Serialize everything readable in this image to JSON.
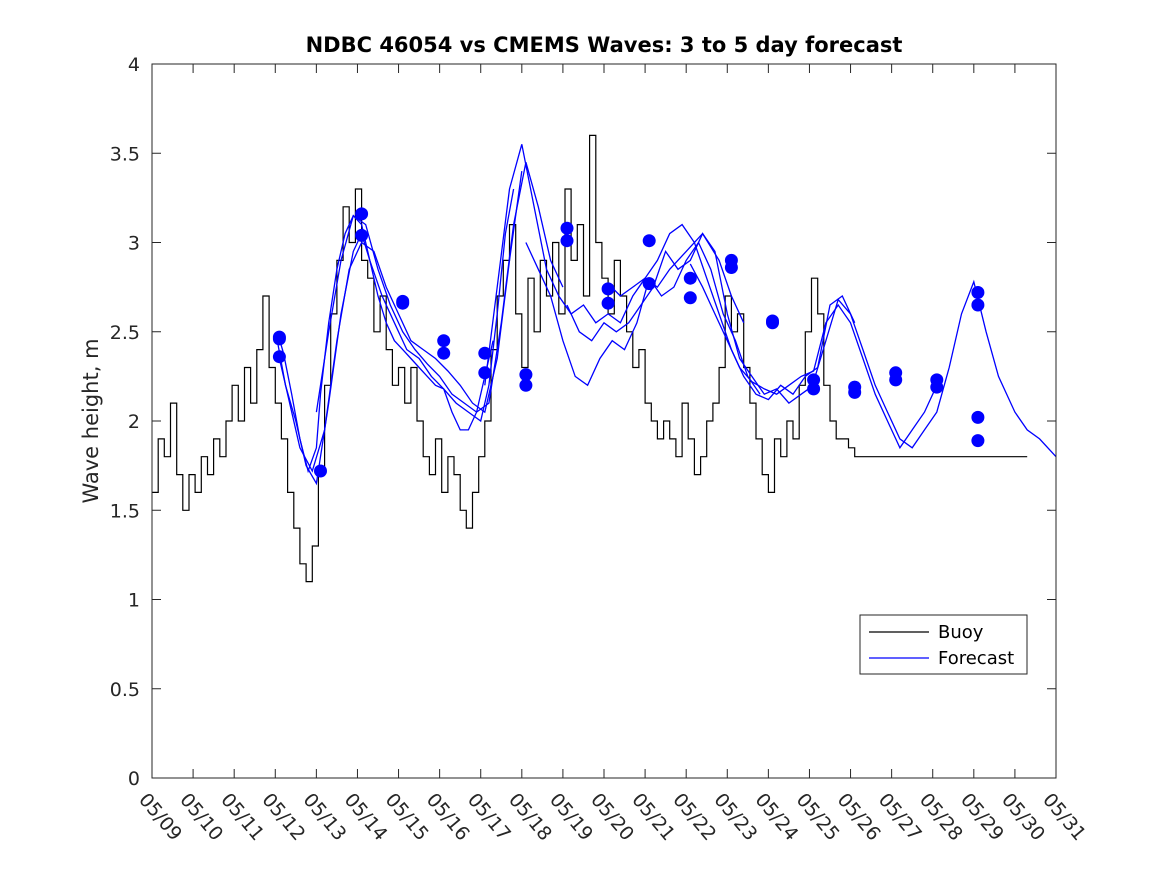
{
  "chart_data": {
    "type": "line",
    "title": "NDBC 46054 vs CMEMS Waves: 3 to 5 day forecast",
    "xlabel": "",
    "ylabel": "Wave height, m",
    "xlim": [
      "05/09",
      "05/31"
    ],
    "ylim": [
      0,
      4
    ],
    "x_ticks": [
      "05/09",
      "05/10",
      "05/11",
      "05/12",
      "05/13",
      "05/14",
      "05/15",
      "05/16",
      "05/17",
      "05/18",
      "05/19",
      "05/20",
      "05/21",
      "05/22",
      "05/23",
      "05/24",
      "05/25",
      "05/26",
      "05/27",
      "05/28",
      "05/29",
      "05/30",
      "05/31"
    ],
    "y_ticks": [
      "0",
      "0.5",
      "1",
      "1.5",
      "2",
      "2.5",
      "3",
      "3.5",
      "4"
    ],
    "grid": false,
    "legend_position": "lower-right",
    "colors": {
      "buoy": "#000000",
      "forecast": "#0000ff"
    },
    "series": [
      {
        "name": "Buoy",
        "x": [
          0,
          0.15,
          0.3,
          0.45,
          0.6,
          0.75,
          0.9,
          1.05,
          1.2,
          1.35,
          1.5,
          1.65,
          1.8,
          1.95,
          2.1,
          2.25,
          2.4,
          2.55,
          2.7,
          2.85,
          3,
          3.15,
          3.3,
          3.45,
          3.6,
          3.75,
          3.9,
          4.05,
          4.2,
          4.35,
          4.5,
          4.65,
          4.8,
          4.95,
          5.1,
          5.25,
          5.4,
          5.55,
          5.7,
          5.85,
          6,
          6.15,
          6.3,
          6.45,
          6.6,
          6.75,
          6.9,
          7.05,
          7.2,
          7.35,
          7.5,
          7.65,
          7.8,
          7.95,
          8.1,
          8.25,
          8.4,
          8.55,
          8.7,
          8.85,
          9,
          9.15,
          9.3,
          9.45,
          9.6,
          9.75,
          9.9,
          10.05,
          10.2,
          10.35,
          10.5,
          10.65,
          10.8,
          10.95,
          11.1,
          11.25,
          11.4,
          11.55,
          11.7,
          11.85,
          12,
          12.15,
          12.3,
          12.45,
          12.6,
          12.75,
          12.9,
          13.05,
          13.2,
          13.35,
          13.5,
          13.65,
          13.8,
          13.95,
          14.1,
          14.25,
          14.4,
          14.55,
          14.7,
          14.85,
          15,
          15.15,
          15.3,
          15.45,
          15.6,
          15.75,
          15.9,
          16.05,
          16.2,
          16.35,
          16.5,
          16.65,
          16.8,
          16.95,
          17.1,
          17.25,
          17.4,
          17.55,
          17.7,
          17.85,
          18,
          18.15,
          18.3,
          18.45,
          18.6,
          18.75,
          18.9,
          19.05,
          19.2,
          19.35,
          19.5,
          19.65,
          19.8,
          19.95,
          20.1,
          20.25,
          20.4,
          20.55,
          20.7,
          20.85,
          21,
          21.15,
          21.3
        ],
        "values": [
          1.6,
          1.9,
          1.8,
          2.1,
          1.7,
          1.5,
          1.7,
          1.6,
          1.8,
          1.7,
          1.9,
          1.8,
          2.0,
          2.2,
          2.0,
          2.3,
          2.1,
          2.4,
          2.7,
          2.3,
          2.1,
          1.9,
          1.6,
          1.4,
          1.2,
          1.1,
          1.3,
          1.7,
          2.2,
          2.6,
          2.9,
          3.2,
          3.0,
          3.3,
          2.9,
          2.8,
          2.5,
          2.7,
          2.4,
          2.2,
          2.3,
          2.1,
          2.3,
          2.0,
          1.8,
          1.7,
          1.9,
          1.6,
          1.8,
          1.7,
          1.5,
          1.4,
          1.6,
          1.8,
          2.0,
          2.4,
          2.7,
          2.9,
          3.1,
          2.6,
          2.3,
          2.8,
          2.5,
          2.9,
          2.7,
          3.0,
          2.6,
          3.3,
          2.9,
          3.1,
          2.7,
          3.6,
          3.0,
          2.8,
          2.6,
          2.9,
          2.7,
          2.5,
          2.3,
          2.4,
          2.1,
          2.0,
          1.9,
          2.0,
          1.9,
          1.8,
          2.1,
          1.9,
          1.7,
          1.8,
          2.0,
          2.1,
          2.3,
          2.7,
          2.5,
          2.6,
          2.3,
          2.1,
          1.9,
          1.7,
          1.6,
          1.9,
          1.8,
          2.0,
          1.9,
          2.2,
          2.5,
          2.8,
          2.6,
          2.2,
          2.0,
          1.9,
          1.9,
          1.85,
          1.8,
          1.8,
          1.8,
          1.8,
          1.8,
          1.8,
          1.8,
          1.8,
          1.8,
          1.8,
          1.8,
          1.8,
          1.8,
          1.8,
          1.8,
          1.8,
          1.8,
          1.8,
          1.8,
          1.8,
          1.8,
          1.8,
          1.8,
          1.8,
          1.8,
          1.8,
          1.8,
          1.8,
          1.8
        ]
      },
      {
        "name": "Forecast",
        "runs": [
          {
            "x": [
              3.05,
              3.2,
              3.4,
              3.6,
              3.8,
              4.0,
              4.1,
              4.3,
              4.5,
              4.7,
              4.9,
              5.1,
              5.3,
              5.5,
              5.7,
              5.9,
              6.1,
              6.3,
              6.5,
              6.7,
              6.9,
              7.1,
              7.3,
              7.5,
              7.7,
              7.9,
              8.1,
              8.3
            ],
            "y": [
              2.5,
              2.38,
              2.15,
              1.9,
              1.72,
              1.85,
              2.15,
              2.55,
              2.85,
              3.05,
              3.15,
              3.1,
              2.9,
              2.7,
              2.55,
              2.45,
              2.4,
              2.35,
              2.3,
              2.25,
              2.2,
              2.18,
              2.05,
              1.95,
              1.95,
              2.05,
              2.25,
              2.45
            ]
          },
          {
            "x": [
              3.05,
              3.25,
              3.5,
              3.75,
              4.0,
              4.3,
              4.6,
              4.9,
              5.1,
              5.3,
              5.6,
              5.9,
              6.2,
              6.5,
              6.8,
              7.1,
              7.4,
              7.7,
              8.0,
              8.2,
              8.4,
              8.6,
              8.8
            ],
            "y": [
              2.45,
              2.2,
              2.0,
              1.75,
              1.65,
              2.1,
              2.6,
              2.95,
              3.05,
              2.9,
              2.7,
              2.55,
              2.4,
              2.35,
              2.25,
              2.18,
              2.1,
              2.05,
              2.0,
              2.2,
              2.6,
              3.05,
              3.3
            ]
          },
          {
            "x": [
              3.1,
              3.3,
              3.6,
              3.9,
              4.2,
              4.5,
              4.8,
              5.1,
              5.4,
              5.7,
              6.0,
              6.3,
              6.6,
              6.9,
              7.2,
              7.5,
              7.8,
              8.1,
              8.4,
              8.7,
              9.0
            ],
            "y": [
              2.35,
              2.15,
              1.85,
              1.72,
              1.95,
              2.45,
              2.85,
              3.0,
              2.95,
              2.75,
              2.6,
              2.45,
              2.4,
              2.35,
              2.28,
              2.2,
              2.1,
              2.05,
              2.35,
              2.9,
              3.4
            ]
          },
          {
            "x": [
              4.0,
              4.3,
              4.6,
              4.9,
              5.2,
              5.5,
              5.8,
              6.1,
              6.4,
              6.7,
              7.0,
              7.3,
              7.6,
              7.9,
              8.2,
              8.5,
              8.8,
              9.1,
              9.4,
              9.7,
              10.0
            ],
            "y": [
              2.05,
              2.5,
              2.9,
              3.15,
              3.1,
              2.85,
              2.65,
              2.5,
              2.4,
              2.32,
              2.25,
              2.15,
              2.1,
              2.05,
              2.1,
              2.55,
              3.1,
              3.45,
              3.2,
              2.9,
              2.75
            ]
          },
          {
            "x": [
              8.1,
              8.4,
              8.7,
              9.0,
              9.3,
              9.6,
              9.9,
              10.2,
              10.5,
              10.8,
              11.1,
              11.4,
              11.7,
              12.0,
              12.3,
              12.6,
              13.0,
              13.4,
              13.8,
              14.1,
              14.4
            ],
            "y": [
              2.2,
              2.75,
              3.3,
              3.55,
              3.2,
              2.85,
              2.7,
              2.6,
              2.65,
              2.55,
              2.6,
              2.55,
              2.7,
              2.8,
              2.75,
              2.85,
              2.95,
              3.05,
              2.9,
              2.7,
              2.55
            ]
          },
          {
            "x": [
              9.1,
              9.4,
              9.7,
              10.0,
              10.3,
              10.6,
              10.9,
              11.2,
              11.5,
              11.8,
              12.1,
              12.4,
              12.7,
              13.0,
              13.3,
              13.6,
              13.9,
              14.2,
              14.5,
              14.8
            ],
            "y": [
              3.0,
              2.85,
              2.7,
              2.45,
              2.25,
              2.2,
              2.35,
              2.45,
              2.4,
              2.55,
              2.8,
              2.7,
              2.75,
              2.9,
              3.0,
              2.85,
              2.6,
              2.45,
              2.25,
              2.15
            ]
          },
          {
            "x": [
              10.1,
              10.4,
              10.7,
              11.0,
              11.3,
              11.6,
              11.9,
              12.2,
              12.5,
              12.8,
              13.1,
              13.4,
              13.7,
              14.0,
              14.3,
              14.6,
              14.9,
              15.2,
              15.5,
              15.8,
              16.1
            ],
            "y": [
              2.65,
              2.5,
              2.45,
              2.55,
              2.5,
              2.55,
              2.65,
              2.75,
              2.95,
              2.85,
              2.9,
              3.05,
              2.95,
              2.6,
              2.35,
              2.25,
              2.15,
              2.18,
              2.1,
              2.15,
              2.2
            ]
          },
          {
            "x": [
              11.1,
              11.4,
              11.7,
              12.0,
              12.3,
              12.6,
              12.9,
              13.2,
              13.5,
              13.8,
              14.1,
              14.4,
              14.7,
              15.0,
              15.3,
              15.6,
              15.9,
              16.2,
              16.5,
              16.8,
              17.1
            ],
            "y": [
              2.77,
              2.7,
              2.75,
              2.8,
              2.9,
              3.05,
              3.1,
              3.0,
              2.8,
              2.6,
              2.4,
              2.25,
              2.15,
              2.12,
              2.2,
              2.15,
              2.25,
              2.3,
              2.65,
              2.7,
              2.55
            ]
          },
          {
            "x": [
              13.1,
              13.4,
              13.7,
              14.0,
              14.3,
              14.6,
              14.9,
              15.2,
              15.5,
              15.8,
              16.1,
              16.4,
              16.7,
              17.0,
              17.3,
              17.6,
              17.9,
              18.2,
              18.5,
              18.8,
              19.1
            ],
            "y": [
              2.88,
              2.75,
              2.6,
              2.45,
              2.3,
              2.22,
              2.18,
              2.15,
              2.2,
              2.25,
              2.28,
              2.55,
              2.65,
              2.55,
              2.35,
              2.15,
              2.0,
              1.85,
              1.95,
              2.05,
              2.2
            ]
          },
          {
            "x": [
              16.1,
              16.4,
              16.7,
              17.0,
              17.3,
              17.6,
              17.9,
              18.2,
              18.5,
              18.8,
              19.1,
              19.4,
              19.7,
              20.0,
              20.3,
              20.6,
              21.0,
              21.3,
              21.6,
              22.0
            ],
            "y": [
              2.22,
              2.45,
              2.68,
              2.6,
              2.4,
              2.2,
              2.05,
              1.9,
              1.85,
              1.95,
              2.05,
              2.3,
              2.6,
              2.78,
              2.5,
              2.25,
              2.05,
              1.95,
              1.9,
              1.8
            ]
          }
        ],
        "markers": {
          "x": [
            3.1,
            3.1,
            3.1,
            4.1,
            5.1,
            5.1,
            6.1,
            6.1,
            7.1,
            7.1,
            8.1,
            8.1,
            9.1,
            9.1,
            10.1,
            10.1,
            11.1,
            11.1,
            12.1,
            12.1,
            13.1,
            13.1,
            14.1,
            14.1,
            15.1,
            15.1,
            16.1,
            16.1,
            17.1,
            17.1,
            18.1,
            18.1,
            19.1,
            19.1,
            20.1,
            20.1
          ],
          "y": [
            2.47,
            2.46,
            2.36,
            1.72,
            3.16,
            3.04,
            2.67,
            2.66,
            2.45,
            2.38,
            2.38,
            2.27,
            2.26,
            2.2,
            3.08,
            3.01,
            2.74,
            2.66,
            3.01,
            2.77,
            2.8,
            2.69,
            2.9,
            2.86,
            2.56,
            2.55,
            2.23,
            2.18,
            2.19,
            2.16,
            2.27,
            2.23,
            2.23,
            2.19,
            2.02,
            1.89
          ]
        },
        "extra_markers": {
          "x": [
            20.1,
            20.1
          ],
          "y": [
            2.72,
            2.65
          ]
        }
      }
    ],
    "legend": {
      "buoy_label": "Buoy",
      "forecast_label": "Forecast"
    }
  }
}
